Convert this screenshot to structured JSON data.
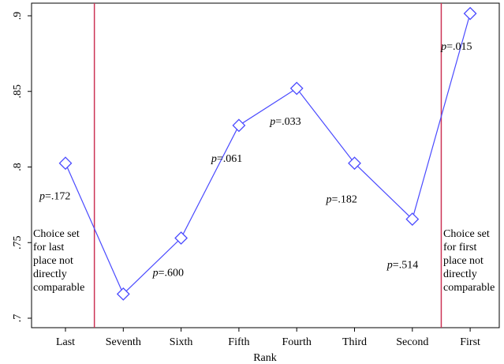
{
  "chart_data": {
    "type": "line",
    "categories": [
      "Last",
      "Seventh",
      "Sixth",
      "Fifth",
      "Fourth",
      "Third",
      "Second",
      "First"
    ],
    "values": [
      0.8025,
      0.716,
      0.753,
      0.8275,
      0.852,
      0.8025,
      0.7655,
      0.9015
    ],
    "xlabel": "Rank",
    "ylabel": "",
    "ylim": [
      0.7,
      0.9
    ],
    "yticks": [
      0.7,
      0.75,
      0.8,
      0.85,
      0.9
    ],
    "ytick_labels": [
      ".7",
      ".75",
      ".8",
      ".85",
      ".9"
    ],
    "marker": "diamond",
    "line_color": "#4a4aff",
    "vline_color": "#cc3355",
    "vlines_between": [
      [
        "Last",
        "Seventh"
      ],
      [
        "Second",
        "First"
      ]
    ],
    "p_values": [
      {
        "category": "Last",
        "prefix": "p",
        "text": "=.172"
      },
      {
        "category": "Sixth",
        "prefix": "p",
        "text": "=.600"
      },
      {
        "category": "Fifth",
        "prefix": "p",
        "text": "=.061"
      },
      {
        "category": "Fourth",
        "prefix": "p",
        "text": "=.033"
      },
      {
        "category": "Third",
        "prefix": "p",
        "text": "=.182"
      },
      {
        "category": "Second",
        "prefix": "p",
        "text": "=.514"
      },
      {
        "category": "First",
        "prefix": "p",
        "text": "=.015"
      }
    ],
    "annotations": {
      "left": [
        "Choice set",
        "for last",
        "place not",
        "directly",
        "comparable"
      ],
      "right": [
        "Choice set",
        "for first",
        "place not",
        "directly",
        "comparable"
      ]
    },
    "grid": false,
    "legend": "none"
  }
}
